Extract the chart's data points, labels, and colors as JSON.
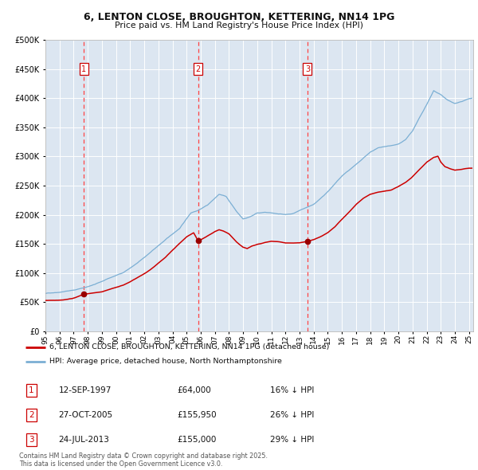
{
  "title_line1": "6, LENTON CLOSE, BROUGHTON, KETTERING, NN14 1PG",
  "title_line2": "Price paid vs. HM Land Registry's House Price Index (HPI)",
  "legend_red": "6, LENTON CLOSE, BROUGHTON, KETTERING, NN14 1PG (detached house)",
  "legend_blue": "HPI: Average price, detached house, North Northamptonshire",
  "transactions": [
    {
      "num": 1,
      "date": "12-SEP-1997",
      "price": 64000,
      "hpi_diff": "16% ↓ HPI",
      "date_x": 1997.71
    },
    {
      "num": 2,
      "date": "27-OCT-2005",
      "price": 155950,
      "hpi_diff": "26% ↓ HPI",
      "date_x": 2005.82
    },
    {
      "num": 3,
      "date": "24-JUL-2013",
      "price": 155000,
      "hpi_diff": "29% ↓ HPI",
      "date_x": 2013.56
    }
  ],
  "copyright_text": "Contains HM Land Registry data © Crown copyright and database right 2025.\nThis data is licensed under the Open Government Licence v3.0.",
  "ylim": [
    0,
    500000
  ],
  "xlim": [
    1995.0,
    2025.3
  ],
  "background_color": "#dce6f1",
  "red_line_color": "#cc0000",
  "blue_line_color": "#7bafd4",
  "grid_color": "#ffffff",
  "dashed_line_color": "#ff4444",
  "hpi_anchors": [
    [
      1995.0,
      65000
    ],
    [
      1996.0,
      68000
    ],
    [
      1997.0,
      72000
    ],
    [
      1997.7,
      76000
    ],
    [
      1998.5,
      82000
    ],
    [
      1999.5,
      92000
    ],
    [
      2000.5,
      102000
    ],
    [
      2001.5,
      118000
    ],
    [
      2002.5,
      138000
    ],
    [
      2003.5,
      158000
    ],
    [
      2004.5,
      178000
    ],
    [
      2005.3,
      205000
    ],
    [
      2005.8,
      210000
    ],
    [
      2006.5,
      220000
    ],
    [
      2007.3,
      238000
    ],
    [
      2007.8,
      234000
    ],
    [
      2008.5,
      210000
    ],
    [
      2009.0,
      196000
    ],
    [
      2009.5,
      200000
    ],
    [
      2010.0,
      207000
    ],
    [
      2010.5,
      208000
    ],
    [
      2011.0,
      207000
    ],
    [
      2011.5,
      205000
    ],
    [
      2012.0,
      204000
    ],
    [
      2012.5,
      205000
    ],
    [
      2013.0,
      210000
    ],
    [
      2013.56,
      215000
    ],
    [
      2014.0,
      220000
    ],
    [
      2014.5,
      230000
    ],
    [
      2015.0,
      242000
    ],
    [
      2015.5,
      255000
    ],
    [
      2016.0,
      268000
    ],
    [
      2016.5,
      278000
    ],
    [
      2017.0,
      288000
    ],
    [
      2017.5,
      298000
    ],
    [
      2018.0,
      308000
    ],
    [
      2018.5,
      315000
    ],
    [
      2019.0,
      318000
    ],
    [
      2019.5,
      320000
    ],
    [
      2020.0,
      322000
    ],
    [
      2020.5,
      330000
    ],
    [
      2021.0,
      345000
    ],
    [
      2021.5,
      368000
    ],
    [
      2022.0,
      390000
    ],
    [
      2022.5,
      415000
    ],
    [
      2023.0,
      408000
    ],
    [
      2023.5,
      398000
    ],
    [
      2024.0,
      392000
    ],
    [
      2024.5,
      395000
    ],
    [
      2025.0,
      400000
    ]
  ],
  "red_anchors": [
    [
      1995.0,
      53000
    ],
    [
      1995.5,
      53500
    ],
    [
      1996.0,
      54000
    ],
    [
      1996.5,
      55000
    ],
    [
      1997.0,
      57000
    ],
    [
      1997.71,
      64000
    ],
    [
      1998.0,
      65000
    ],
    [
      1998.5,
      66000
    ],
    [
      1999.0,
      68000
    ],
    [
      1999.5,
      72000
    ],
    [
      2000.0,
      76000
    ],
    [
      2000.5,
      80000
    ],
    [
      2001.0,
      86000
    ],
    [
      2001.5,
      93000
    ],
    [
      2002.0,
      100000
    ],
    [
      2002.5,
      108000
    ],
    [
      2003.0,
      118000
    ],
    [
      2003.5,
      128000
    ],
    [
      2004.0,
      140000
    ],
    [
      2004.5,
      152000
    ],
    [
      2005.0,
      163000
    ],
    [
      2005.5,
      170000
    ],
    [
      2005.82,
      155950
    ],
    [
      2006.0,
      158000
    ],
    [
      2006.5,
      165000
    ],
    [
      2007.0,
      172000
    ],
    [
      2007.3,
      175000
    ],
    [
      2007.6,
      173000
    ],
    [
      2008.0,
      168000
    ],
    [
      2008.5,
      155000
    ],
    [
      2009.0,
      145000
    ],
    [
      2009.3,
      143000
    ],
    [
      2009.6,
      147000
    ],
    [
      2010.0,
      150000
    ],
    [
      2010.5,
      153000
    ],
    [
      2011.0,
      155000
    ],
    [
      2011.5,
      154000
    ],
    [
      2012.0,
      152000
    ],
    [
      2012.5,
      152000
    ],
    [
      2013.0,
      153000
    ],
    [
      2013.56,
      155000
    ],
    [
      2014.0,
      158000
    ],
    [
      2014.5,
      163000
    ],
    [
      2015.0,
      170000
    ],
    [
      2015.5,
      180000
    ],
    [
      2016.0,
      193000
    ],
    [
      2016.5,
      205000
    ],
    [
      2017.0,
      218000
    ],
    [
      2017.5,
      228000
    ],
    [
      2018.0,
      235000
    ],
    [
      2018.5,
      238000
    ],
    [
      2019.0,
      240000
    ],
    [
      2019.5,
      242000
    ],
    [
      2020.0,
      248000
    ],
    [
      2020.5,
      255000
    ],
    [
      2021.0,
      265000
    ],
    [
      2021.5,
      278000
    ],
    [
      2022.0,
      290000
    ],
    [
      2022.5,
      298000
    ],
    [
      2022.8,
      300000
    ],
    [
      2023.0,
      290000
    ],
    [
      2023.3,
      282000
    ],
    [
      2023.7,
      278000
    ],
    [
      2024.0,
      276000
    ],
    [
      2024.5,
      278000
    ],
    [
      2025.0,
      280000
    ]
  ]
}
